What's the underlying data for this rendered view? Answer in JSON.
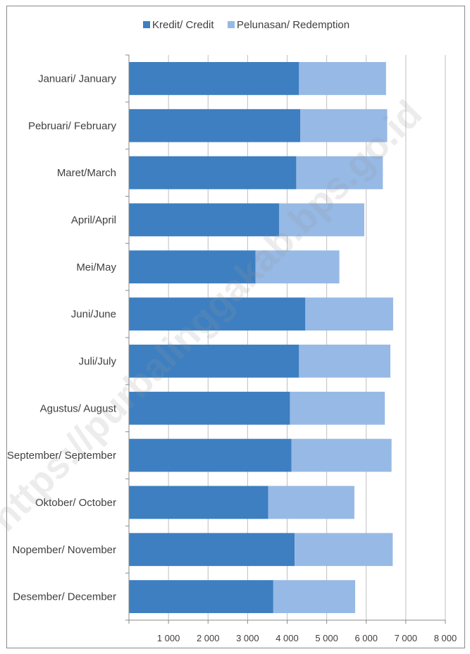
{
  "chart_data": {
    "type": "bar",
    "orientation": "horizontal",
    "stacked": true,
    "categories": [
      "Januari/ January",
      "Pebruari/ February",
      "Maret/March",
      "April/April",
      "Mei/May",
      "Juni/June",
      "Juli/July",
      "Agustus/ August",
      "September/ September",
      "Oktober/ October",
      "Nopember/ November",
      "Desember/ December"
    ],
    "series": [
      {
        "name": "Kredit/ Credit",
        "color": "#3d7fc1",
        "values": [
          4300,
          4330,
          4230,
          3800,
          3200,
          4460,
          4300,
          4070,
          4110,
          3520,
          4190,
          3650
        ]
      },
      {
        "name": "Pelunasan/ Redemption",
        "color": "#97b9e5",
        "values": [
          2200,
          2200,
          2190,
          2150,
          2120,
          2220,
          2310,
          2400,
          2530,
          2180,
          2480,
          2070
        ]
      }
    ],
    "xlim": [
      0,
      8000
    ],
    "xticks": [
      "1 000",
      "2 000",
      "3 000",
      "4 000",
      "5 000",
      "6 000",
      "7 000",
      "8 000"
    ],
    "xtick_values": [
      1000,
      2000,
      3000,
      4000,
      5000,
      6000,
      7000,
      8000
    ],
    "grid": "vertical",
    "legend_position": "top"
  },
  "watermark": "https://purbalinggakab.bps.go.id"
}
